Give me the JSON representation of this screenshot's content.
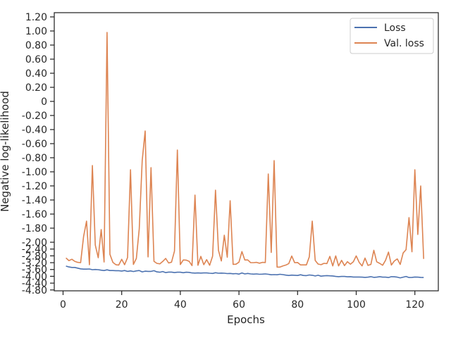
{
  "chart_data": {
    "type": "line",
    "xlabel": "Epochs",
    "ylabel": "Negative log-likelihood",
    "xlim": [
      -3,
      128
    ],
    "x_ticks": [
      0,
      20,
      40,
      60,
      80,
      100,
      120
    ],
    "y_tick_labels": [
      "1.20",
      "1.00",
      "0.80",
      "0.60",
      "0.40",
      "0.20",
      "0",
      "-0.20",
      "-0.40",
      "-0.60",
      "-0.80",
      "-1.00",
      "-1.20",
      "-1.40",
      "-1.60",
      "-1.80",
      "-2.00",
      "-2.40",
      "-2.80",
      "-3.20",
      "-3.60",
      "-4.00",
      "-4.40",
      "-4.80"
    ],
    "y_tick_labels_note": "axis uses symlog-style scale; some tick labels overlap in original",
    "legend_position": "top-right",
    "grid": false,
    "colors": {
      "Loss": "#4c72b0",
      "Val. loss": "#dd8452"
    },
    "series": [
      {
        "name": "Loss",
        "x": [
          1,
          2,
          3,
          4,
          5,
          6,
          7,
          8,
          9,
          10,
          11,
          12,
          13,
          14,
          15,
          16,
          17,
          18,
          19,
          20,
          21,
          22,
          23,
          24,
          25,
          26,
          27,
          28,
          29,
          30,
          31,
          32,
          33,
          34,
          35,
          36,
          37,
          38,
          39,
          40,
          41,
          42,
          43,
          44,
          45,
          46,
          47,
          48,
          49,
          50,
          51,
          52,
          53,
          54,
          55,
          56,
          57,
          58,
          59,
          60,
          61,
          62,
          63,
          64,
          65,
          66,
          67,
          68,
          69,
          70,
          71,
          72,
          73,
          74,
          75,
          76,
          77,
          78,
          79,
          80,
          81,
          82,
          83,
          84,
          85,
          86,
          87,
          88,
          89,
          90,
          91,
          92,
          93,
          94,
          95,
          96,
          97,
          98,
          99,
          100,
          101,
          102,
          103,
          104,
          105,
          106,
          107,
          108,
          109,
          110,
          111,
          112,
          113,
          114,
          115,
          116,
          117,
          118,
          119,
          120,
          121,
          122,
          123
        ],
        "values": [
          -3.4,
          -3.45,
          -3.48,
          -3.48,
          -3.52,
          -3.56,
          -3.58,
          -3.58,
          -3.57,
          -3.61,
          -3.6,
          -3.61,
          -3.64,
          -3.66,
          -3.62,
          -3.66,
          -3.66,
          -3.67,
          -3.67,
          -3.69,
          -3.66,
          -3.71,
          -3.68,
          -3.72,
          -3.68,
          -3.66,
          -3.74,
          -3.7,
          -3.71,
          -3.71,
          -3.67,
          -3.74,
          -3.76,
          -3.72,
          -3.78,
          -3.75,
          -3.75,
          -3.78,
          -3.76,
          -3.76,
          -3.79,
          -3.76,
          -3.77,
          -3.8,
          -3.81,
          -3.8,
          -3.81,
          -3.8,
          -3.8,
          -3.82,
          -3.83,
          -3.79,
          -3.82,
          -3.81,
          -3.82,
          -3.84,
          -3.83,
          -3.85,
          -3.84,
          -3.87,
          -3.8,
          -3.86,
          -3.83,
          -3.86,
          -3.87,
          -3.86,
          -3.88,
          -3.87,
          -3.86,
          -3.88,
          -3.91,
          -3.9,
          -3.91,
          -3.88,
          -3.9,
          -3.93,
          -3.95,
          -3.93,
          -3.94,
          -3.95,
          -3.91,
          -3.95,
          -3.96,
          -3.92,
          -3.94,
          -3.98,
          -3.94,
          -3.99,
          -3.97,
          -3.96,
          -3.97,
          -3.98,
          -4.01,
          -4.02,
          -4.01,
          -4.01,
          -4.03,
          -4.02,
          -4.04,
          -4.04,
          -4.04,
          -4.05,
          -4.06,
          -4.05,
          -4.02,
          -4.06,
          -4.05,
          -4.02,
          -4.05,
          -4.05,
          -4.07,
          -4.02,
          -4.03,
          -4.05,
          -4.09,
          -4.05,
          -4.01,
          -4.07,
          -4.06,
          -4.04,
          -4.05,
          -4.06,
          -4.07
        ]
      },
      {
        "name": "Val. loss",
        "x": [
          1,
          2,
          3,
          4,
          5,
          6,
          7,
          8,
          9,
          10,
          11,
          12,
          13,
          14,
          15,
          16,
          17,
          18,
          19,
          20,
          21,
          22,
          23,
          24,
          25,
          26,
          27,
          28,
          29,
          30,
          31,
          32,
          33,
          34,
          35,
          36,
          37,
          38,
          39,
          40,
          41,
          42,
          43,
          44,
          45,
          46,
          47,
          48,
          49,
          50,
          51,
          52,
          53,
          54,
          55,
          56,
          57,
          58,
          59,
          60,
          61,
          62,
          63,
          64,
          65,
          66,
          67,
          68,
          69,
          70,
          71,
          72,
          73,
          74,
          75,
          76,
          77,
          78,
          79,
          80,
          81,
          82,
          83,
          84,
          85,
          86,
          87,
          88,
          89,
          90,
          91,
          92,
          93,
          94,
          95,
          96,
          97,
          98,
          99,
          100,
          101,
          102,
          103,
          104,
          105,
          106,
          107,
          108,
          109,
          110,
          111,
          112,
          113,
          114,
          115,
          116,
          117,
          118,
          119,
          120,
          121,
          122,
          123
        ],
        "values": [
          -2.92,
          -3.08,
          -3.0,
          -3.12,
          -3.18,
          -3.2,
          -1.92,
          -1.7,
          -3.32,
          -0.91,
          -2.16,
          -2.91,
          -1.82,
          -3.16,
          0.98,
          -2.71,
          -3.18,
          -3.32,
          -3.34,
          -3.0,
          -3.32,
          -2.9,
          -0.97,
          -3.3,
          -2.95,
          -1.81,
          -0.84,
          -0.42,
          -2.86,
          -0.94,
          -3.12,
          -3.24,
          -3.27,
          -3.13,
          -2.95,
          -3.22,
          -3.17,
          -2.52,
          -0.69,
          -3.31,
          -3.04,
          -3.05,
          -3.12,
          -3.37,
          -1.33,
          -3.35,
          -2.83,
          -3.32,
          -3.02,
          -3.35,
          -2.82,
          -1.26,
          -2.48,
          -3.1,
          -1.9,
          -2.88,
          -1.41,
          -3.3,
          -3.29,
          -3.17,
          -2.55,
          -3.04,
          -3.04,
          -3.2,
          -3.2,
          -3.18,
          -3.23,
          -3.18,
          -3.19,
          -1.03,
          -2.6,
          -0.84,
          -3.46,
          -3.46,
          -3.39,
          -3.34,
          -3.25,
          -2.81,
          -3.2,
          -3.19,
          -3.33,
          -3.33,
          -3.33,
          -2.86,
          -1.7,
          -3.07,
          -3.28,
          -3.32,
          -3.24,
          -3.25,
          -2.83,
          -3.39,
          -2.8,
          -3.39,
          -3.06,
          -3.37,
          -3.14,
          -3.29,
          -3.15,
          -2.8,
          -3.18,
          -3.39,
          -2.93,
          -3.36,
          -3.3,
          -2.47,
          -3.15,
          -3.24,
          -3.35,
          -3.06,
          -2.58,
          -3.34,
          -3.1,
          -2.98,
          -3.3,
          -2.63,
          -2.44,
          -1.65,
          -2.56,
          -0.97,
          -1.89,
          -1.2,
          -2.98
        ]
      }
    ]
  }
}
